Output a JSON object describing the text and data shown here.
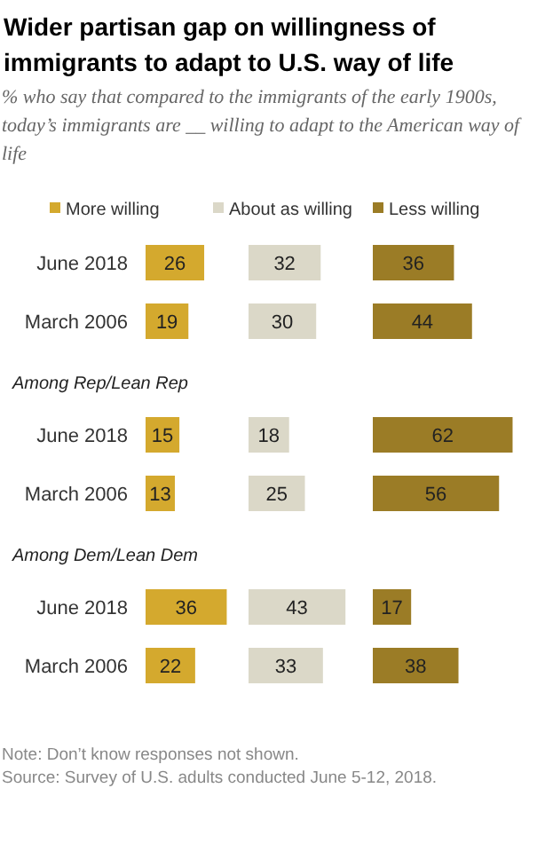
{
  "chart_data": [
    {
      "type": "bar",
      "orientation": "horizontal",
      "title": "Wider partisan gap on willingness of immigrants to adapt to U.S. way of life",
      "subtitle": "% who say that compared to the immigrants of the early 1900s, today’s immigrants are __ willing to adapt to the American way of life",
      "categories": [
        "June 2018",
        "March 2006"
      ],
      "legend": "top",
      "data_labels": true,
      "series": [
        {
          "name": "More willing",
          "color": "#d4a92e",
          "values": [
            26,
            19
          ]
        }
      ]
    },
    {
      "type": "bar",
      "orientation": "horizontal",
      "categories": [
        null,
        null
      ],
      "legend": "top",
      "data_labels": true,
      "series": [
        {
          "name": "About as willing",
          "color": "#dbd8c8",
          "values": [
            32,
            30
          ]
        }
      ]
    },
    {
      "type": "bar",
      "orientation": "horizontal",
      "categories": [
        null,
        null
      ],
      "legend": "top",
      "data_labels": true,
      "series": [
        {
          "name": "Less willing",
          "color": "#9b7c26",
          "values": [
            36,
            44
          ]
        }
      ]
    },
    {
      "type": "bar",
      "orientation": "horizontal",
      "title": "Among Rep/Lean Rep",
      "categories": [
        "June 2018",
        "March 2006"
      ],
      "data_labels": true,
      "series": [
        {
          "color": "#d4a92e",
          "values": [
            15,
            13
          ]
        }
      ]
    },
    {
      "type": "bar",
      "orientation": "horizontal",
      "categories": [
        null,
        null
      ],
      "data_labels": true,
      "series": [
        {
          "color": "#dbd8c8",
          "values": [
            18,
            25
          ]
        }
      ]
    },
    {
      "type": "bar",
      "orientation": "horizontal",
      "categories": [
        null,
        null
      ],
      "data_labels": true,
      "series": [
        {
          "color": "#9b7c26",
          "values": [
            62,
            56
          ]
        }
      ]
    },
    {
      "type": "bar",
      "orientation": "horizontal",
      "title": "Among Dem/Lean Dem",
      "categories": [
        "June 2018",
        "March 2006"
      ],
      "data_labels": true,
      "series": [
        {
          "color": "#d4a92e",
          "values": [
            36,
            22
          ]
        }
      ]
    },
    {
      "type": "bar",
      "orientation": "horizontal",
      "categories": [
        null,
        null
      ],
      "data_labels": true,
      "series": [
        {
          "color": "#dbd8c8",
          "values": [
            43,
            33
          ]
        }
      ]
    },
    {
      "type": "bar",
      "orientation": "horizontal",
      "categories": [
        null,
        null
      ],
      "data_labels": true,
      "annotations": [
        "Note: Don’t know responses not shown.",
        "Source: Survey of U.S. adults conducted June 5-12, 2018."
      ],
      "series": [
        {
          "color": "#9b7c26",
          "values": [
            17,
            38
          ]
        }
      ]
    }
  ]
}
